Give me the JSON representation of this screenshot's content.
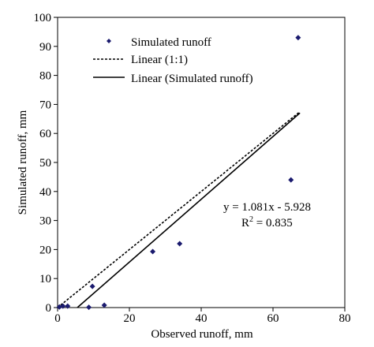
{
  "chart_data": {
    "type": "scatter",
    "xlabel": "Observed runoff, mm",
    "ylabel": "Simulated runoff, mm",
    "xlim": [
      0,
      80
    ],
    "ylim": [
      0,
      100
    ],
    "xticks": [
      "0",
      "20",
      "40",
      "60",
      "80"
    ],
    "yticks": [
      "0",
      "10",
      "20",
      "30",
      "40",
      "50",
      "60",
      "70",
      "80",
      "90",
      "100"
    ],
    "grid": false,
    "legend_position": "top-left",
    "series": [
      {
        "name": "Simulated runoff",
        "marker": "diamond",
        "color": "#1a1a6e",
        "points": [
          [
            0.5,
            0.2
          ],
          [
            1.5,
            0.5
          ],
          [
            2.8,
            0.5
          ],
          [
            9.7,
            7.3
          ],
          [
            8.7,
            0.1
          ],
          [
            13.0,
            0.8
          ],
          [
            26.5,
            19.3
          ],
          [
            34.0,
            22.0
          ],
          [
            65.0,
            44.0
          ],
          [
            67.0,
            93.0
          ]
        ]
      },
      {
        "name": "Linear (1:1)",
        "style": "dashed",
        "color": "#000000",
        "points": [
          [
            0,
            0
          ],
          [
            67.5,
            67.5
          ]
        ]
      },
      {
        "name": "Linear (Simulated runoff)",
        "style": "solid",
        "color": "#000000",
        "points": [
          [
            5.5,
            0
          ],
          [
            67.5,
            67.05
          ]
        ]
      }
    ],
    "annotations": {
      "equation": "y = 1.081x - 5.928",
      "r2_prefix": "R",
      "r2_sup": "2",
      "r2_value": " = 0.835"
    }
  }
}
